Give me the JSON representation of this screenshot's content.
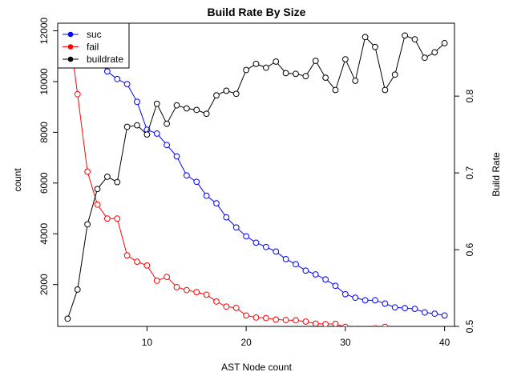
{
  "chart_data": {
    "type": "line",
    "title": "Build Rate By Size",
    "xlabel": "AST Node count",
    "ylabel": "count",
    "y2label": "Build Rate",
    "xlim": [
      1,
      41
    ],
    "ylim": [
      350,
      12300
    ],
    "y2lim": [
      0.5,
      0.895
    ],
    "xticks": [
      "10",
      "20",
      "30",
      "40"
    ],
    "yticks": [
      "2000",
      "4000",
      "6000",
      "8000",
      "10000",
      "12000"
    ],
    "y2ticks": [
      "0.5",
      "0.6",
      "0.7",
      "0.8"
    ],
    "grid": false,
    "legend_position": "top-left",
    "legend": [
      {
        "label": "suc",
        "color": "#0000ff"
      },
      {
        "label": "fail",
        "color": "#ff0000"
      },
      {
        "label": "buildrate",
        "color": "#000000"
      }
    ],
    "series": [
      {
        "name": "suc",
        "axis": "left",
        "color": "#0000ff",
        "x": [
          2,
          3,
          4,
          5,
          6,
          7,
          8,
          9,
          10,
          11,
          12,
          13,
          14,
          15,
          16,
          17,
          18,
          19,
          20,
          21,
          22,
          23,
          24,
          25,
          26,
          27,
          28,
          29,
          30,
          31,
          32,
          33,
          34,
          35,
          36,
          37,
          38,
          39,
          40
        ],
        "values": [
          12500,
          12000,
          11500,
          11000,
          10400,
          10100,
          9900,
          9200,
          8100,
          7950,
          7500,
          7050,
          6300,
          6050,
          5500,
          5200,
          4650,
          4250,
          3900,
          3650,
          3480,
          3300,
          3000,
          2800,
          2550,
          2400,
          2200,
          1950,
          1620,
          1480,
          1380,
          1380,
          1250,
          1100,
          1070,
          1040,
          900,
          850,
          780
        ]
      },
      {
        "name": "fail",
        "axis": "left",
        "color": "#ff0000",
        "x": [
          2,
          3,
          4,
          5,
          6,
          7,
          8,
          9,
          10,
          11,
          12,
          13,
          14,
          15,
          16,
          17,
          18,
          19,
          20,
          21,
          22,
          23,
          24,
          25,
          26,
          27,
          28,
          29,
          30,
          31,
          32,
          33,
          34,
          35,
          36,
          37,
          38,
          39,
          40
        ],
        "values": [
          12500,
          9500,
          6450,
          5150,
          4600,
          4600,
          3150,
          2900,
          2750,
          2150,
          2300,
          1900,
          1780,
          1700,
          1600,
          1330,
          1130,
          1080,
          780,
          700,
          680,
          620,
          600,
          590,
          540,
          460,
          440,
          450,
          330,
          250,
          240,
          280,
          330,
          230,
          220,
          210,
          200,
          180,
          170
        ]
      },
      {
        "name": "buildrate",
        "axis": "right",
        "color": "#000000",
        "x": [
          2,
          3,
          4,
          5,
          6,
          7,
          8,
          9,
          10,
          11,
          12,
          13,
          14,
          15,
          16,
          17,
          18,
          19,
          20,
          21,
          22,
          23,
          24,
          25,
          26,
          27,
          28,
          29,
          30,
          31,
          32,
          33,
          34,
          35,
          36,
          37,
          38,
          39,
          40
        ],
        "values": [
          0.51,
          0.548,
          0.633,
          0.679,
          0.695,
          0.688,
          0.76,
          0.762,
          0.75,
          0.79,
          0.764,
          0.788,
          0.784,
          0.782,
          0.777,
          0.801,
          0.807,
          0.803,
          0.834,
          0.842,
          0.837,
          0.845,
          0.83,
          0.829,
          0.826,
          0.846,
          0.824,
          0.808,
          0.848,
          0.82,
          0.877,
          0.864,
          0.808,
          0.828,
          0.879,
          0.874,
          0.85,
          0.857,
          0.869
        ]
      }
    ]
  }
}
